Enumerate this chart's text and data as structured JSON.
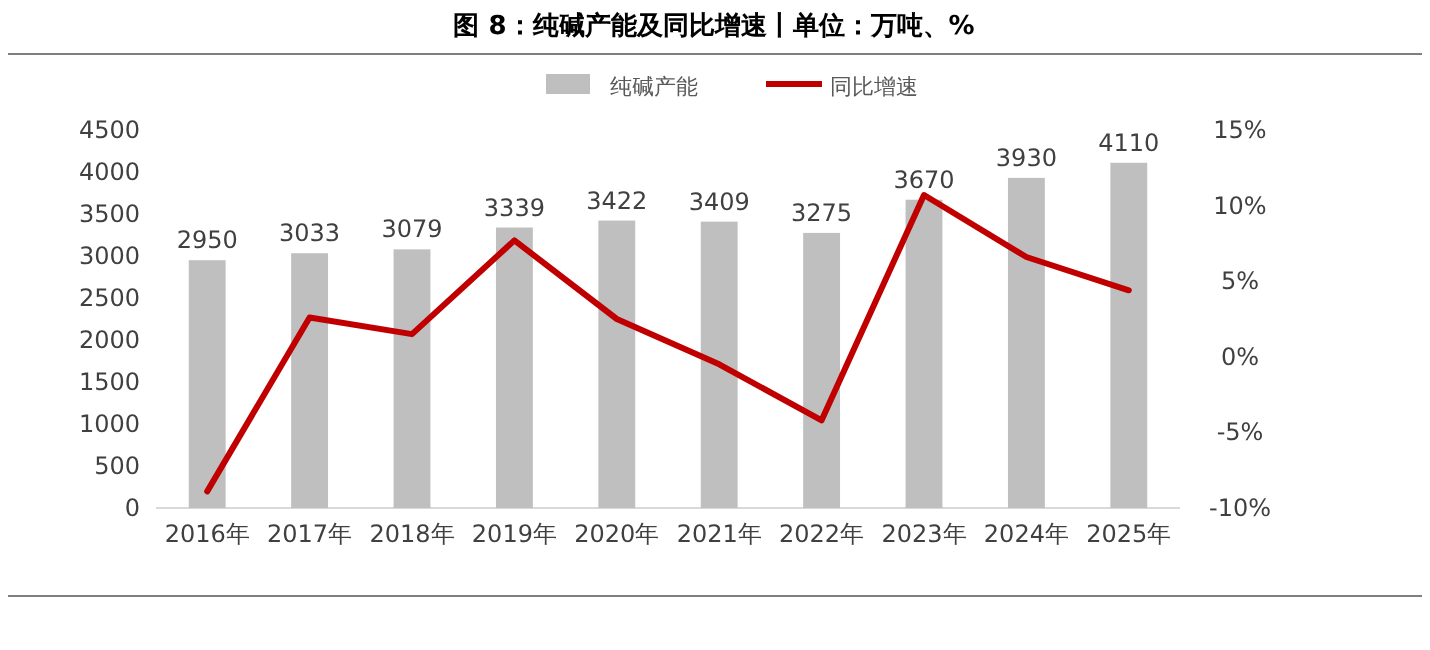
{
  "chart_data": {
    "type": "bar",
    "title": "图 8：纯碱产能及同比增速丨单位：万吨、%",
    "categories": [
      "2016年",
      "2017年",
      "2018年",
      "2019年",
      "2020年",
      "2021年",
      "2022年",
      "2023年",
      "2024年",
      "2025年"
    ],
    "series": [
      {
        "name": "纯碱产能",
        "color": "#bfbfbf",
        "values": [
          2950,
          3033,
          3079,
          3339,
          3422,
          3409,
          3275,
          3670,
          3930,
          4110
        ],
        "value_labels": [
          "2950",
          "3033",
          "3079",
          "3339",
          "3422",
          "3409",
          "3275",
          "3670",
          "3930",
          "4110"
        ]
      },
      {
        "name": "同比增速",
        "type": "line",
        "axis": "y2",
        "color": "#c00000",
        "values": [
          -8.9,
          2.6,
          1.5,
          7.7,
          2.5,
          -0.5,
          -4.2,
          10.7,
          6.6,
          4.4
        ]
      }
    ],
    "ylim": [
      0,
      4500
    ],
    "yticks": [
      0,
      500,
      1000,
      1500,
      2000,
      2500,
      3000,
      3500,
      4000,
      4500
    ],
    "y2lim": [
      -10,
      15
    ],
    "y2ticks": [
      {
        "value": -10,
        "label": "-10%"
      },
      {
        "value": -5,
        "label": "-5%"
      },
      {
        "value": 0,
        "label": "0%"
      },
      {
        "value": 5,
        "label": "5%"
      },
      {
        "value": 10,
        "label": "10%"
      },
      {
        "value": 15,
        "label": "15%"
      }
    ],
    "legend": "top"
  }
}
